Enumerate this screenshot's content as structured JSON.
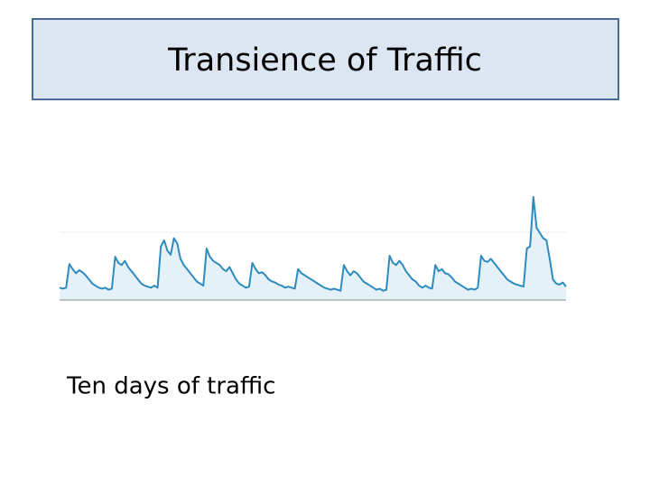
{
  "title": "Transience of Traffic",
  "caption": "Ten days of traffic",
  "chart_data": {
    "type": "area",
    "color": "#2e8bc0",
    "fill": "#e4f1f8",
    "ylim": [
      0,
      100
    ],
    "values": [
      12,
      11,
      12,
      35,
      30,
      26,
      29,
      27,
      24,
      20,
      16,
      14,
      12,
      11,
      12,
      10,
      11,
      42,
      36,
      34,
      38,
      32,
      28,
      24,
      20,
      16,
      14,
      13,
      12,
      14,
      12,
      52,
      58,
      48,
      44,
      60,
      55,
      40,
      34,
      30,
      26,
      22,
      18,
      16,
      14,
      50,
      42,
      38,
      36,
      34,
      30,
      28,
      32,
      26,
      20,
      16,
      14,
      12,
      13,
      36,
      30,
      26,
      27,
      24,
      20,
      18,
      17,
      15,
      14,
      12,
      13,
      12,
      11,
      30,
      26,
      24,
      22,
      20,
      18,
      16,
      14,
      12,
      11,
      10,
      11,
      10,
      9,
      34,
      28,
      24,
      28,
      26,
      22,
      18,
      16,
      14,
      12,
      10,
      11,
      9,
      10,
      43,
      36,
      34,
      38,
      34,
      28,
      24,
      20,
      18,
      14,
      12,
      14,
      12,
      11,
      34,
      28,
      30,
      26,
      25,
      22,
      18,
      16,
      14,
      12,
      10,
      11,
      10,
      12,
      43,
      38,
      37,
      40,
      36,
      32,
      28,
      24,
      20,
      18,
      16,
      15,
      14,
      13,
      50,
      52,
      100,
      70,
      65,
      60,
      58,
      40,
      20,
      16,
      15,
      17,
      13
    ]
  }
}
